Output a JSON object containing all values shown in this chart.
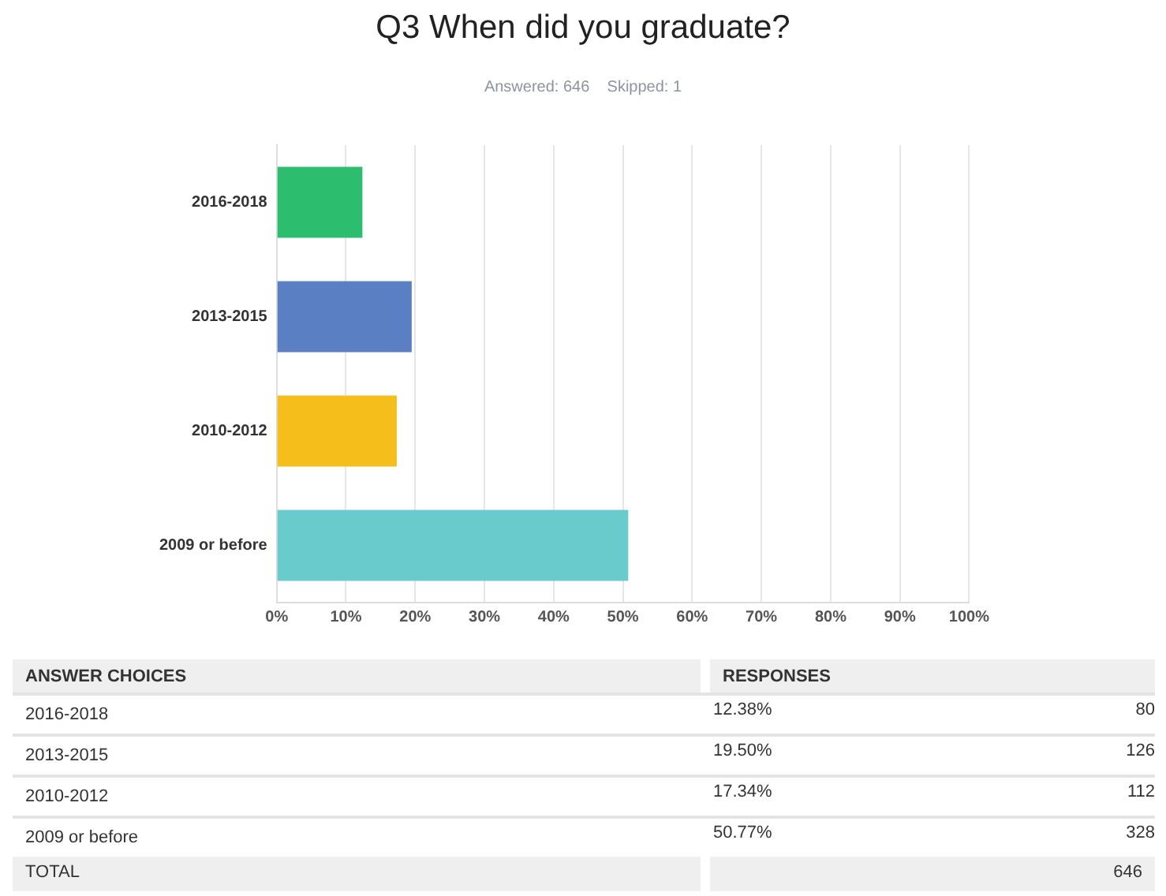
{
  "chart_data": {
    "type": "bar",
    "orientation": "horizontal",
    "title": "Q3 When did you graduate?",
    "subtitle": "Answered: 646    Skipped: 1",
    "categories": [
      "2016-2018",
      "2013-2015",
      "2010-2012",
      "2009 or before"
    ],
    "values": [
      12.38,
      19.5,
      17.34,
      50.77
    ],
    "colors": [
      "#2dbd6e",
      "#5a7fc2",
      "#f6be1a",
      "#6acbcc"
    ],
    "xlim": [
      0,
      100
    ],
    "xticks": [
      {
        "value": 0,
        "label": "0%"
      },
      {
        "value": 10,
        "label": "10%"
      },
      {
        "value": 20,
        "label": "20%"
      },
      {
        "value": 30,
        "label": "30%"
      },
      {
        "value": 40,
        "label": "40%"
      },
      {
        "value": 50,
        "label": "50%"
      },
      {
        "value": 60,
        "label": "60%"
      },
      {
        "value": 70,
        "label": "70%"
      },
      {
        "value": 80,
        "label": "80%"
      },
      {
        "value": 90,
        "label": "90%"
      },
      {
        "value": 100,
        "label": "100%"
      }
    ],
    "grid": "x",
    "annotations": [
      "ANSWER CHOICES",
      "RESPONSES",
      "12.38%",
      "19.50%",
      "17.34%",
      "50.77%",
      "80",
      "126",
      "112",
      "328",
      "TOTAL",
      "646"
    ]
  }
}
